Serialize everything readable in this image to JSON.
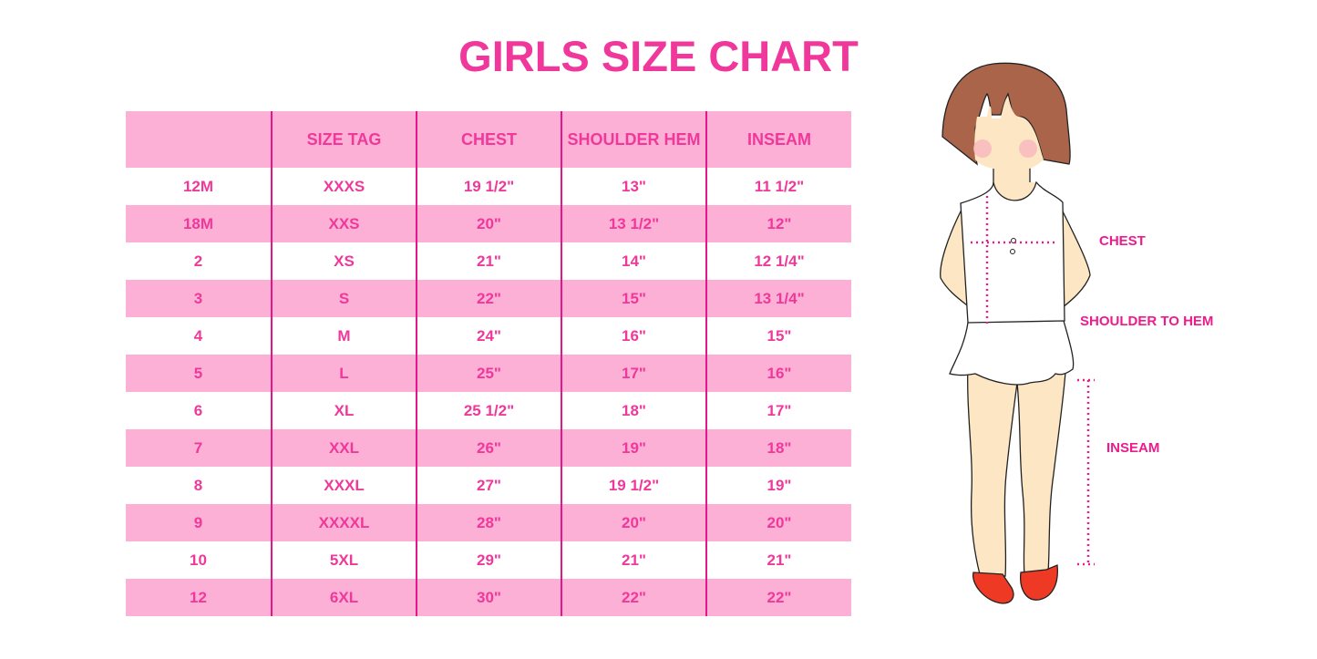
{
  "title": "GIRLS SIZE CHART",
  "table": {
    "headers": [
      "",
      "SIZE TAG",
      "CHEST",
      "SHOULDER HEM",
      "INSEAM"
    ],
    "rows": [
      [
        "12M",
        "XXXS",
        "19 1/2\"",
        "13\"",
        "11 1/2\""
      ],
      [
        "18M",
        "XXS",
        "20\"",
        "13 1/2\"",
        "12\""
      ],
      [
        "2",
        "XS",
        "21\"",
        "14\"",
        "12 1/4\""
      ],
      [
        "3",
        "S",
        "22\"",
        "15\"",
        "13 1/4\""
      ],
      [
        "4",
        "M",
        "24\"",
        "16\"",
        "15\""
      ],
      [
        "5",
        "L",
        "25\"",
        "17\"",
        "16\""
      ],
      [
        "6",
        "XL",
        "25 1/2\"",
        "18\"",
        "17\""
      ],
      [
        "7",
        "XXL",
        "26\"",
        "19\"",
        "18\""
      ],
      [
        "8",
        "XXXL",
        "27\"",
        "19 1/2\"",
        "19\""
      ],
      [
        "9",
        "XXXXL",
        "28\"",
        "20\"",
        "20\""
      ],
      [
        "10",
        "5XL",
        "29\"",
        "21\"",
        "21\""
      ],
      [
        "12",
        "6XL",
        "30\"",
        "22\"",
        "22\""
      ]
    ]
  },
  "figure": {
    "labels": {
      "chest": "CHEST",
      "shoulder_to_hem": "SHOULDER TO HEM",
      "inseam": "INSEAM"
    }
  },
  "colors": {
    "accent": "#f0379b",
    "row_pink": "#fcb0d6",
    "divider": "#e3168a"
  }
}
